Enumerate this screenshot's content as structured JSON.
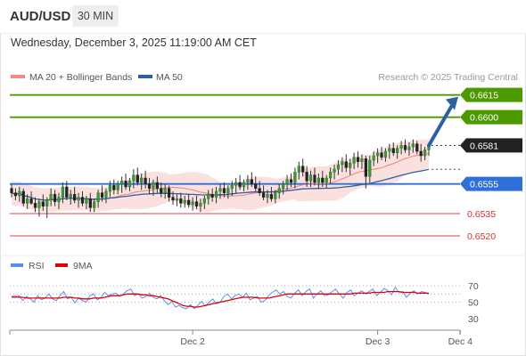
{
  "header": {
    "symbol": "AUD/USD",
    "timeframe": "30 MIN",
    "datetime": "Wednesday, December 3, 2025 11:19:00 AM CET"
  },
  "legend": {
    "ma20": {
      "label": "MA 20 + Bollinger Bands",
      "color": "#f28b82"
    },
    "ma50": {
      "label": "MA 50",
      "color": "#2e5f9e"
    }
  },
  "attribution": "Research © 2025 Trading Central",
  "rsi_legend": {
    "rsi": {
      "label": "RSI",
      "color": "#5b8def"
    },
    "ma": {
      "label": "9MA",
      "color": "#e00000"
    }
  },
  "chart_data": [
    {
      "type": "candlestick",
      "title": "",
      "ylim": [
        0.6505,
        0.6625
      ],
      "current_price": {
        "value": 0.6581,
        "label": "0.6581"
      },
      "levels": [
        {
          "value": 0.6615,
          "label": "0.6615",
          "kind": "resistance",
          "color": "#4c9a00"
        },
        {
          "value": 0.66,
          "label": "0.6600",
          "kind": "resistance",
          "color": "#4c9a00"
        },
        {
          "value": 0.6555,
          "label": "0.6555",
          "kind": "pivot",
          "color": "#2e6fd8"
        },
        {
          "value": 0.6535,
          "label": "0.6535",
          "kind": "support",
          "color": "#e04040"
        },
        {
          "value": 0.652,
          "label": "0.6520",
          "kind": "support",
          "color": "#e04040"
        }
      ],
      "x_ticks": [
        {
          "label": "Dec 2",
          "index": 46
        },
        {
          "label": "Dec 3",
          "index": 93
        },
        {
          "label": "Dec 4",
          "index": 114
        }
      ],
      "candles": [
        [
          0.6552,
          0.6555,
          0.6546,
          0.6549
        ],
        [
          0.6549,
          0.6552,
          0.6544,
          0.6547
        ],
        [
          0.6547,
          0.6553,
          0.6543,
          0.655
        ],
        [
          0.655,
          0.6552,
          0.654,
          0.6542
        ],
        [
          0.6542,
          0.6548,
          0.6538,
          0.6545
        ],
        [
          0.6545,
          0.655,
          0.6541,
          0.6542
        ],
        [
          0.6542,
          0.6546,
          0.6536,
          0.6539
        ],
        [
          0.6539,
          0.6545,
          0.6533,
          0.6543
        ],
        [
          0.6543,
          0.6548,
          0.6537,
          0.654
        ],
        [
          0.654,
          0.6546,
          0.6532,
          0.6544
        ],
        [
          0.6544,
          0.6552,
          0.654,
          0.6548
        ],
        [
          0.6548,
          0.6551,
          0.654,
          0.6543
        ],
        [
          0.6543,
          0.6549,
          0.6538,
          0.6546
        ],
        [
          0.6546,
          0.6556,
          0.6542,
          0.6553
        ],
        [
          0.6553,
          0.6557,
          0.6544,
          0.6546
        ],
        [
          0.6546,
          0.6551,
          0.6541,
          0.6548
        ],
        [
          0.6548,
          0.6553,
          0.6542,
          0.6544
        ],
        [
          0.6544,
          0.6549,
          0.6539,
          0.6546
        ],
        [
          0.6546,
          0.655,
          0.654,
          0.6542
        ],
        [
          0.6542,
          0.6547,
          0.6538,
          0.6545
        ],
        [
          0.6545,
          0.6549,
          0.6536,
          0.6539
        ],
        [
          0.6539,
          0.6545,
          0.6536,
          0.6543
        ],
        [
          0.6543,
          0.6551,
          0.6539,
          0.6549
        ],
        [
          0.6549,
          0.6554,
          0.6543,
          0.6546
        ],
        [
          0.6546,
          0.6552,
          0.6542,
          0.655
        ],
        [
          0.655,
          0.6557,
          0.6546,
          0.6554
        ],
        [
          0.6554,
          0.6558,
          0.6548,
          0.6551
        ],
        [
          0.6551,
          0.6557,
          0.6548,
          0.6555
        ],
        [
          0.6555,
          0.656,
          0.6549,
          0.6557
        ],
        [
          0.6557,
          0.6562,
          0.6551,
          0.6553
        ],
        [
          0.6553,
          0.6559,
          0.655,
          0.6557
        ],
        [
          0.6557,
          0.6565,
          0.6552,
          0.6561
        ],
        [
          0.6561,
          0.6566,
          0.6554,
          0.6556
        ],
        [
          0.6556,
          0.6562,
          0.6551,
          0.6559
        ],
        [
          0.6559,
          0.6564,
          0.6552,
          0.6555
        ],
        [
          0.6555,
          0.6559,
          0.6548,
          0.6552
        ],
        [
          0.6552,
          0.6558,
          0.6547,
          0.6556
        ],
        [
          0.6556,
          0.656,
          0.6549,
          0.6552
        ],
        [
          0.6552,
          0.6556,
          0.6546,
          0.6549
        ],
        [
          0.6549,
          0.6555,
          0.6545,
          0.6552
        ],
        [
          0.6552,
          0.6554,
          0.6543,
          0.6546
        ],
        [
          0.6546,
          0.655,
          0.6541,
          0.6544
        ],
        [
          0.6544,
          0.6548,
          0.654,
          0.6545
        ],
        [
          0.6545,
          0.6549,
          0.6539,
          0.6542
        ],
        [
          0.6542,
          0.6547,
          0.6539,
          0.6544
        ],
        [
          0.6544,
          0.6548,
          0.6539,
          0.6541
        ],
        [
          0.6541,
          0.6546,
          0.6537,
          0.6543
        ],
        [
          0.6543,
          0.6547,
          0.6538,
          0.654
        ],
        [
          0.654,
          0.6545,
          0.6536,
          0.6542
        ],
        [
          0.6542,
          0.6547,
          0.6538,
          0.6545
        ],
        [
          0.6545,
          0.6551,
          0.6541,
          0.6548
        ],
        [
          0.6548,
          0.6552,
          0.6543,
          0.6546
        ],
        [
          0.6546,
          0.6553,
          0.6542,
          0.655
        ],
        [
          0.655,
          0.6555,
          0.6545,
          0.6552
        ],
        [
          0.6552,
          0.6556,
          0.6546,
          0.6549
        ],
        [
          0.6549,
          0.6554,
          0.6545,
          0.6552
        ],
        [
          0.6552,
          0.6557,
          0.6547,
          0.6554
        ],
        [
          0.6554,
          0.6559,
          0.6549,
          0.6556
        ],
        [
          0.6556,
          0.6561,
          0.6551,
          0.6553
        ],
        [
          0.6553,
          0.6558,
          0.655,
          0.6556
        ],
        [
          0.6556,
          0.6561,
          0.6551,
          0.6558
        ],
        [
          0.6558,
          0.6563,
          0.6553,
          0.6555
        ],
        [
          0.6555,
          0.656,
          0.655,
          0.6552
        ],
        [
          0.6552,
          0.6557,
          0.6547,
          0.6549
        ],
        [
          0.6549,
          0.6554,
          0.6544,
          0.6546
        ],
        [
          0.6546,
          0.6551,
          0.6542,
          0.6548
        ],
        [
          0.6548,
          0.6553,
          0.6543,
          0.6545
        ],
        [
          0.6545,
          0.6551,
          0.6542,
          0.6549
        ],
        [
          0.6549,
          0.6555,
          0.6545,
          0.6552
        ],
        [
          0.6552,
          0.6557,
          0.6548,
          0.6555
        ],
        [
          0.6555,
          0.6561,
          0.6551,
          0.6558
        ],
        [
          0.6558,
          0.6562,
          0.6553,
          0.6556
        ],
        [
          0.6556,
          0.6566,
          0.6552,
          0.6563
        ],
        [
          0.6563,
          0.657,
          0.6558,
          0.6567
        ],
        [
          0.6567,
          0.6572,
          0.656,
          0.6563
        ],
        [
          0.6563,
          0.6567,
          0.6553,
          0.6557
        ],
        [
          0.6557,
          0.6564,
          0.6553,
          0.6561
        ],
        [
          0.6561,
          0.6566,
          0.6554,
          0.6556
        ],
        [
          0.6556,
          0.6562,
          0.6552,
          0.6559
        ],
        [
          0.6559,
          0.6564,
          0.6553,
          0.6556
        ],
        [
          0.6556,
          0.6561,
          0.6552,
          0.6559
        ],
        [
          0.6559,
          0.6566,
          0.6555,
          0.6563
        ],
        [
          0.6563,
          0.6568,
          0.6558,
          0.6565
        ],
        [
          0.6565,
          0.6571,
          0.6561,
          0.6568
        ],
        [
          0.6568,
          0.6573,
          0.6563,
          0.657
        ],
        [
          0.657,
          0.6575,
          0.6563,
          0.6566
        ],
        [
          0.6566,
          0.6572,
          0.6561,
          0.6569
        ],
        [
          0.6569,
          0.6576,
          0.6565,
          0.6573
        ],
        [
          0.6573,
          0.6577,
          0.6566,
          0.657
        ],
        [
          0.657,
          0.6575,
          0.6565,
          0.6572
        ],
        [
          0.6572,
          0.6574,
          0.6552,
          0.656
        ],
        [
          0.656,
          0.6574,
          0.6556,
          0.6571
        ],
        [
          0.6571,
          0.6577,
          0.6567,
          0.6574
        ],
        [
          0.6574,
          0.6579,
          0.6569,
          0.6576
        ],
        [
          0.6576,
          0.658,
          0.6571,
          0.6573
        ],
        [
          0.6573,
          0.6579,
          0.657,
          0.6577
        ],
        [
          0.6577,
          0.6582,
          0.6572,
          0.6579
        ],
        [
          0.6579,
          0.6583,
          0.6574,
          0.6576
        ],
        [
          0.6576,
          0.6581,
          0.6572,
          0.6579
        ],
        [
          0.6579,
          0.6584,
          0.6575,
          0.6581
        ],
        [
          0.6581,
          0.6585,
          0.6576,
          0.6578
        ],
        [
          0.6578,
          0.6583,
          0.6574,
          0.658
        ],
        [
          0.658,
          0.6585,
          0.6576,
          0.6582
        ],
        [
          0.6582,
          0.6584,
          0.6575,
          0.6577
        ],
        [
          0.6577,
          0.6582,
          0.657,
          0.6574
        ],
        [
          0.6574,
          0.658,
          0.6571,
          0.6578
        ],
        [
          0.6578,
          0.6583,
          0.6574,
          0.6581
        ]
      ]
    },
    {
      "type": "line",
      "title": "",
      "ylim": [
        20,
        80
      ],
      "y_ticks": [
        70,
        50,
        30
      ],
      "dotted_levels": [
        70,
        60,
        50
      ],
      "series": [
        {
          "name": "RSI",
          "color": "#5b8def",
          "values": [
            56,
            55,
            58,
            52,
            57,
            54,
            50,
            58,
            53,
            55,
            60,
            54,
            52,
            58,
            63,
            54,
            56,
            49,
            55,
            52,
            50,
            58,
            60,
            53,
            56,
            62,
            58,
            60,
            61,
            57,
            60,
            64,
            66,
            58,
            60,
            55,
            57,
            61,
            56,
            54,
            58,
            52,
            47,
            51,
            44,
            46,
            43,
            42,
            47,
            42,
            46,
            51,
            45,
            50,
            54,
            48,
            50,
            57,
            60,
            54,
            58,
            60,
            56,
            61,
            53,
            55,
            57,
            50,
            52,
            58,
            62,
            65,
            60,
            63,
            57,
            55,
            61,
            65,
            58,
            63,
            66,
            55,
            60,
            64,
            58,
            59,
            63,
            66,
            60,
            55,
            62,
            65,
            58,
            61,
            64,
            60,
            63,
            66,
            58,
            62,
            67,
            64,
            59,
            68,
            62,
            63,
            56,
            61,
            64,
            60,
            63,
            62,
            60
          ]
        },
        {
          "name": "9MA",
          "color": "#e00000",
          "values": [
            57,
            57,
            56,
            56,
            55,
            55,
            55,
            55,
            55,
            55,
            55,
            55,
            55,
            55,
            56,
            56,
            56,
            55,
            55,
            54,
            54,
            54,
            55,
            55,
            55,
            56,
            57,
            58,
            58,
            58,
            59,
            60,
            60,
            60,
            60,
            59,
            59,
            58,
            58,
            57,
            56,
            55,
            54,
            52,
            50,
            48,
            46,
            45,
            45,
            44,
            44,
            45,
            46,
            47,
            48,
            49,
            50,
            51,
            52,
            53,
            54,
            55,
            56,
            56,
            56,
            56,
            55,
            55,
            55,
            55,
            56,
            57,
            58,
            59,
            60,
            60,
            60,
            60,
            60,
            60,
            60,
            60,
            60,
            60,
            60,
            60,
            60,
            60,
            60,
            60,
            60,
            60,
            61,
            61,
            61,
            61,
            61,
            62,
            62,
            62,
            62,
            63,
            63,
            63,
            63,
            62,
            62,
            62,
            62,
            61,
            61,
            61,
            61
          ]
        }
      ],
      "x_ticks": [
        {
          "label": "Dec 2",
          "index": 46
        },
        {
          "label": "Dec 3",
          "index": 93
        },
        {
          "label": "Dec 4",
          "index": 114
        }
      ]
    }
  ]
}
